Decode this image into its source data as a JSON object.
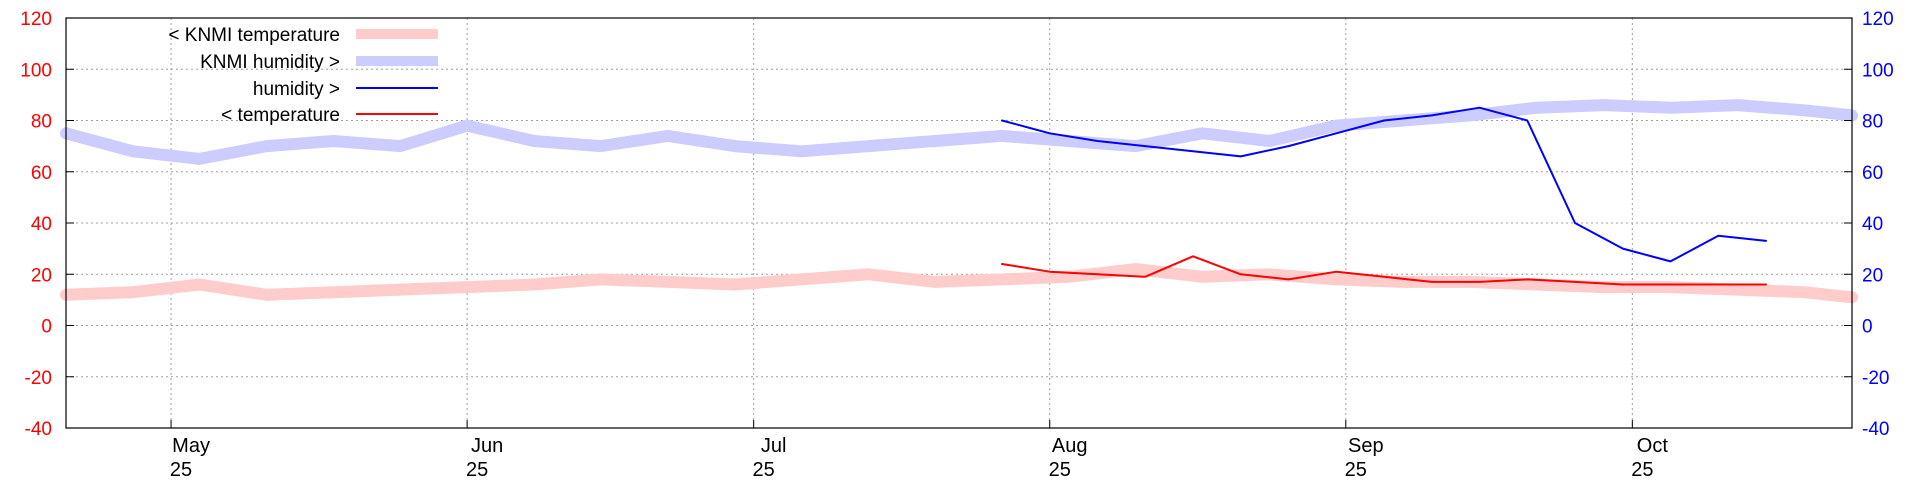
{
  "chart_data": {
    "type": "line",
    "title": "",
    "xlabel": "",
    "ylabel": "",
    "colors": {
      "knmi_temperature": "#ffcccc",
      "knmi_humidity": "#ccccff",
      "humidity": "#0000ff",
      "temperature": "#ff0000",
      "y_left_ticks": "#ff0000",
      "y_right_ticks": "#0000ff",
      "grid": "#a0a0a0"
    },
    "grid": true,
    "legend_position": "top-left",
    "x_ticks": [
      {
        "month": "May",
        "day": "25",
        "date": "2025-05-01"
      },
      {
        "month": "Jun",
        "day": "25",
        "date": "2025-06-01"
      },
      {
        "month": "Jul",
        "day": "25",
        "date": "2025-07-01"
      },
      {
        "month": "Aug",
        "day": "25",
        "date": "2025-08-01"
      },
      {
        "month": "Sep",
        "day": "25",
        "date": "2025-09-01"
      },
      {
        "month": "Oct",
        "day": "25",
        "date": "2025-10-01"
      }
    ],
    "xlim": [
      "2025-04-20",
      "2025-10-24"
    ],
    "y_left": {
      "ticks": [
        "120",
        "100",
        "80",
        "60",
        "40",
        "20",
        "0",
        "-20",
        "-40"
      ],
      "ylim": [
        -40,
        120
      ]
    },
    "y_right": {
      "ticks": [
        "120",
        "100",
        "80",
        "60",
        "40",
        "20",
        "0",
        "-20",
        "-40"
      ],
      "ylim": [
        -40,
        120
      ]
    },
    "series": [
      {
        "name": "< KNMI temperature",
        "axis": "left",
        "style": "thick",
        "x": [
          "2025-04-20",
          "2025-04-27",
          "2025-05-04",
          "2025-05-11",
          "2025-05-18",
          "2025-05-25",
          "2025-06-01",
          "2025-06-08",
          "2025-06-15",
          "2025-06-22",
          "2025-06-29",
          "2025-07-06",
          "2025-07-13",
          "2025-07-20",
          "2025-07-27",
          "2025-08-03",
          "2025-08-10",
          "2025-08-17",
          "2025-08-24",
          "2025-08-31",
          "2025-09-07",
          "2025-09-14",
          "2025-09-21",
          "2025-09-28",
          "2025-10-05",
          "2025-10-12",
          "2025-10-19",
          "2025-10-24"
        ],
        "y": [
          12,
          13,
          16,
          12,
          13,
          14,
          15,
          16,
          18,
          17,
          16,
          18,
          20,
          17,
          18,
          19,
          22,
          19,
          20,
          18,
          17,
          17,
          16,
          15,
          15,
          14,
          13,
          11
        ]
      },
      {
        "name": "KNMI humidity >",
        "axis": "right",
        "style": "thick",
        "x": [
          "2025-04-20",
          "2025-04-27",
          "2025-05-04",
          "2025-05-11",
          "2025-05-18",
          "2025-05-25",
          "2025-06-01",
          "2025-06-08",
          "2025-06-15",
          "2025-06-22",
          "2025-06-29",
          "2025-07-06",
          "2025-07-13",
          "2025-07-20",
          "2025-07-27",
          "2025-08-03",
          "2025-08-10",
          "2025-08-17",
          "2025-08-24",
          "2025-08-31",
          "2025-09-07",
          "2025-09-14",
          "2025-09-21",
          "2025-09-28",
          "2025-10-05",
          "2025-10-12",
          "2025-10-19",
          "2025-10-24"
        ],
        "y": [
          75,
          68,
          65,
          70,
          72,
          70,
          78,
          72,
          70,
          74,
          70,
          68,
          70,
          72,
          74,
          72,
          70,
          75,
          72,
          78,
          80,
          82,
          85,
          86,
          85,
          86,
          84,
          82
        ]
      },
      {
        "name": "humidity >",
        "axis": "right",
        "style": "thin",
        "x": [
          "2025-07-27",
          "2025-08-01",
          "2025-08-06",
          "2025-08-11",
          "2025-08-16",
          "2025-08-21",
          "2025-08-26",
          "2025-08-31",
          "2025-09-05",
          "2025-09-10",
          "2025-09-15",
          "2025-09-20",
          "2025-09-25",
          "2025-09-30",
          "2025-10-05",
          "2025-10-10",
          "2025-10-15"
        ],
        "y": [
          80,
          75,
          72,
          70,
          68,
          66,
          70,
          75,
          80,
          82,
          85,
          80,
          40,
          30,
          25,
          35,
          33
        ]
      },
      {
        "name": "< temperature",
        "axis": "left",
        "style": "thin",
        "x": [
          "2025-07-27",
          "2025-08-01",
          "2025-08-06",
          "2025-08-11",
          "2025-08-16",
          "2025-08-21",
          "2025-08-26",
          "2025-08-31",
          "2025-09-05",
          "2025-09-10",
          "2025-09-15",
          "2025-09-20",
          "2025-09-25",
          "2025-09-30",
          "2025-10-05",
          "2025-10-10",
          "2025-10-15"
        ],
        "y": [
          24,
          21,
          20,
          19,
          27,
          20,
          18,
          21,
          19,
          17,
          17,
          18,
          17,
          16,
          16,
          16,
          16
        ]
      }
    ]
  }
}
